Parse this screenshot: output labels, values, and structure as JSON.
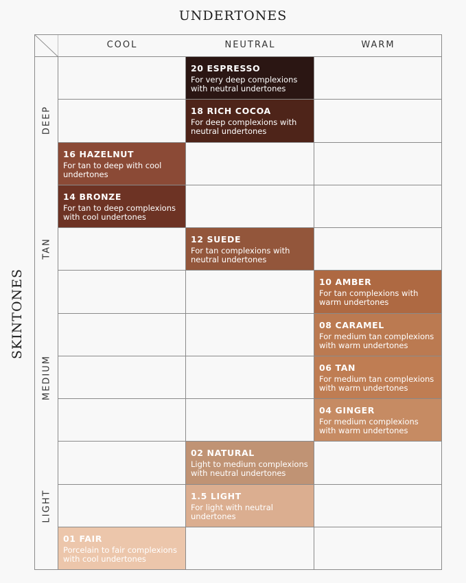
{
  "titles": {
    "top": "UNDERTONES",
    "left": "SKINTONES"
  },
  "columns": [
    "COOL",
    "NEUTRAL",
    "WARM"
  ],
  "skintone_groups": [
    "DEEP",
    "TAN",
    "MEDIUM",
    "LIGHT"
  ],
  "shades": [
    {
      "name": "20 ESPRESSO",
      "desc": "For very deep complexions with neutral undertones",
      "undertone": "NEUTRAL",
      "color": "#2b1613"
    },
    {
      "name": "18 RICH COCOA",
      "desc": "For deep complexions with neutral undertones",
      "undertone": "NEUTRAL",
      "color": "#4e2419"
    },
    {
      "name": "16 HAZELNUT",
      "desc": "For tan to deep with cool undertones",
      "undertone": "COOL",
      "color": "#8b4a36"
    },
    {
      "name": "14 BRONZE",
      "desc": "For tan to deep complexions with cool undertones",
      "undertone": "COOL",
      "color": "#6d3324"
    },
    {
      "name": "12 SUEDE",
      "desc": "For tan complexions with neutral undertones",
      "undertone": "NEUTRAL",
      "color": "#93563b"
    },
    {
      "name": "10 AMBER",
      "desc": "For tan complexions with warm undertones",
      "undertone": "WARM",
      "color": "#ae6942"
    },
    {
      "name": "08 CARAMEL",
      "desc": "For medium tan complexions with warm undertones",
      "undertone": "WARM",
      "color": "#bb7a51"
    },
    {
      "name": "06 TAN",
      "desc": "For medium tan complexions with warm undertones",
      "undertone": "WARM",
      "color": "#bf7d53"
    },
    {
      "name": "04 GINGER",
      "desc": "For medium complexions with warm undertones",
      "undertone": "WARM",
      "color": "#c68b63"
    },
    {
      "name": "02 NATURAL",
      "desc": "Light to medium complexions with neutral undertones",
      "undertone": "NEUTRAL",
      "color": "#c09374"
    },
    {
      "name": "1.5 LIGHT",
      "desc": "For light with neutral undertones",
      "undertone": "NEUTRAL",
      "color": "#dbae90"
    },
    {
      "name": "01 FAIR",
      "desc": "Porcelain to fair complexions with cool undertones",
      "undertone": "COOL",
      "color": "#ecc6ab"
    }
  ]
}
